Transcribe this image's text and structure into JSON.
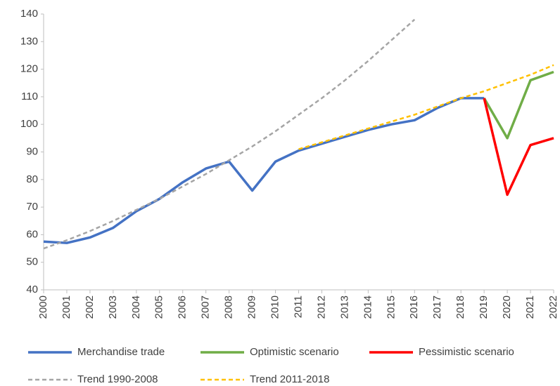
{
  "chart_data": {
    "type": "line",
    "categories": [
      "2000",
      "2001",
      "2002",
      "2003",
      "2004",
      "2005",
      "2006",
      "2007",
      "2008",
      "2009",
      "2010",
      "2011",
      "2012",
      "2013",
      "2014",
      "2015",
      "2016",
      "2017",
      "2018",
      "2019",
      "2020",
      "2021",
      "2022"
    ],
    "ylim": [
      40,
      140
    ],
    "yticks": [
      40,
      50,
      60,
      70,
      80,
      90,
      100,
      110,
      120,
      130,
      140
    ],
    "grid": false,
    "series": [
      {
        "name": "Merchandise trade",
        "color": "#4472c4",
        "line_style": "solid",
        "values": [
          57.5,
          57,
          59,
          62.5,
          68.5,
          73,
          79,
          84,
          86.5,
          76,
          86.5,
          90.5,
          93,
          95.5,
          98,
          100,
          101.5,
          106,
          109.5,
          109.5,
          null,
          null,
          null
        ]
      },
      {
        "name": "Optimistic scenario",
        "color": "#70ad47",
        "line_style": "solid",
        "values": [
          null,
          null,
          null,
          null,
          null,
          null,
          null,
          null,
          null,
          null,
          null,
          null,
          null,
          null,
          null,
          null,
          null,
          null,
          null,
          109.5,
          95,
          116,
          119
        ]
      },
      {
        "name": "Pessimistic scenario",
        "color": "#ff0000",
        "line_style": "solid",
        "values": [
          null,
          null,
          null,
          null,
          null,
          null,
          null,
          null,
          null,
          null,
          null,
          null,
          null,
          null,
          null,
          null,
          null,
          null,
          null,
          109.5,
          74.5,
          92.5,
          95
        ]
      },
      {
        "name": "Trend 1990-2008",
        "color": "#a5a5a5",
        "line_style": "dashed",
        "values": [
          55,
          58,
          61.3,
          65,
          69,
          73,
          77.5,
          82,
          87,
          92,
          97.5,
          103.5,
          109.5,
          116,
          123,
          130.5,
          138,
          null,
          null,
          null,
          null,
          null,
          null
        ]
      },
      {
        "name": "Trend 2011-2018",
        "color": "#ffc000",
        "line_style": "dashed",
        "values": [
          null,
          null,
          null,
          null,
          null,
          null,
          null,
          null,
          null,
          null,
          null,
          91,
          93.5,
          96,
          98.5,
          101,
          103.5,
          106.5,
          109.5,
          112,
          115,
          118,
          121.5
        ]
      }
    ]
  }
}
